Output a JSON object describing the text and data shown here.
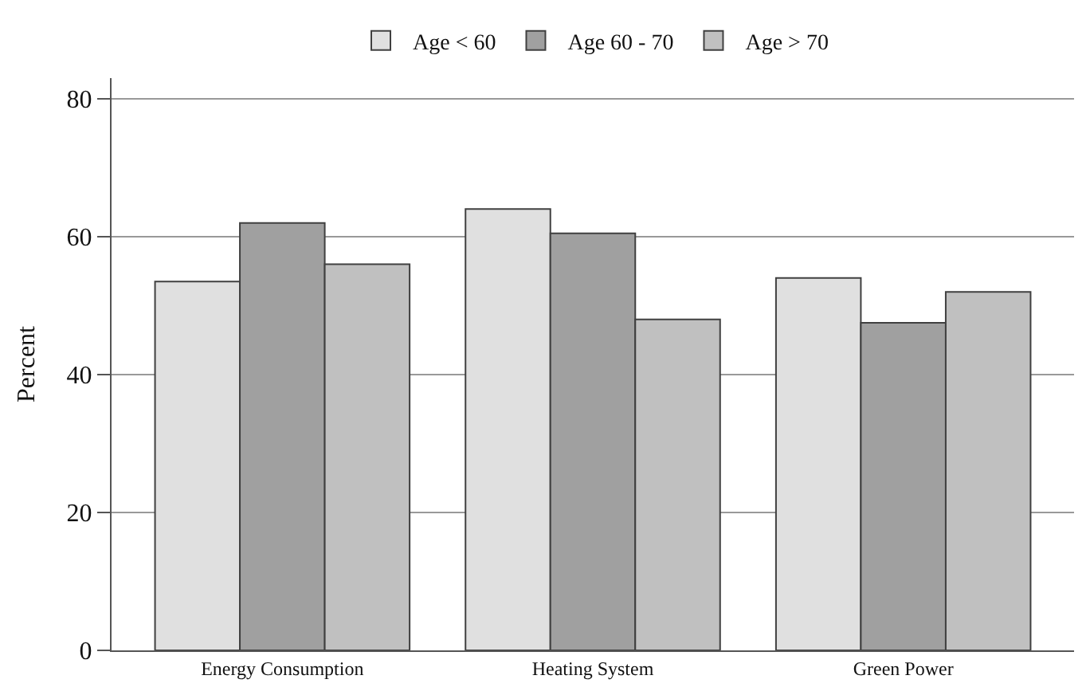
{
  "chart_data": {
    "type": "bar",
    "ylabel": "Percent",
    "categories": [
      "Energy Consumption",
      "Heating System",
      "Green Power"
    ],
    "series": [
      {
        "name": "Age < 60",
        "color": "#e0e0e0",
        "values": [
          53.5,
          64,
          54
        ]
      },
      {
        "name": "Age 60 - 70",
        "color": "#a0a0a0",
        "values": [
          62,
          60.5,
          47.5
        ]
      },
      {
        "name": "Age > 70",
        "color": "#c0c0c0",
        "values": [
          56,
          48,
          52
        ]
      }
    ],
    "ylim": [
      0,
      83
    ],
    "yticks": [
      0,
      20,
      40,
      60,
      80
    ],
    "grid": "y",
    "legend": "top"
  }
}
